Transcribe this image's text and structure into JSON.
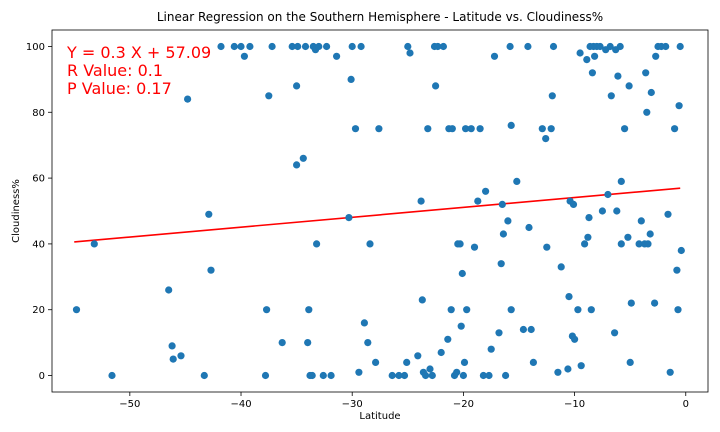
{
  "chart_data": {
    "type": "scatter",
    "title": "Linear Regression on the Southern Hemisphere - Latitude vs. Cloudiness%",
    "xlabel": "Latitude",
    "ylabel": "Cloudiness%",
    "xlim": [
      -57,
      2
    ],
    "ylim": [
      -5,
      105
    ],
    "xticks": [
      -50,
      -40,
      -30,
      -20,
      -10,
      0
    ],
    "yticks": [
      0,
      20,
      40,
      60,
      80,
      100
    ],
    "grid": false,
    "point_color": "#1f77b4",
    "line_color": "#ff0000",
    "regression": {
      "slope": 0.3,
      "intercept": 57.09,
      "x_range": [
        -55,
        -0.5
      ]
    },
    "annotations": [
      "Y = 0.3 X + 57.09",
      "R Value: 0.1",
      "P Value: 0.17"
    ],
    "points": [
      [
        -54.8,
        20
      ],
      [
        -53.2,
        40
      ],
      [
        -51.6,
        0
      ],
      [
        -46.5,
        26
      ],
      [
        -46.2,
        9
      ],
      [
        -46.1,
        5
      ],
      [
        -45.4,
        6
      ],
      [
        -44.8,
        84
      ],
      [
        -43.3,
        0
      ],
      [
        -42.9,
        49
      ],
      [
        -42.7,
        32
      ],
      [
        -41.8,
        100
      ],
      [
        -40.6,
        100
      ],
      [
        -40,
        100
      ],
      [
        -39.7,
        97
      ],
      [
        -39.2,
        100
      ],
      [
        -37.8,
        0
      ],
      [
        -37.7,
        20
      ],
      [
        -37.5,
        85
      ],
      [
        -37.2,
        100
      ],
      [
        -36.3,
        10
      ],
      [
        -35.4,
        100
      ],
      [
        -35,
        88
      ],
      [
        -35,
        64
      ],
      [
        -34.9,
        100
      ],
      [
        -34.4,
        66
      ],
      [
        -34.2,
        100
      ],
      [
        -34,
        10
      ],
      [
        -33.9,
        20
      ],
      [
        -33.8,
        0
      ],
      [
        -33.6,
        0
      ],
      [
        -33.5,
        100
      ],
      [
        -33.3,
        99
      ],
      [
        -33.2,
        40
      ],
      [
        -33,
        100
      ],
      [
        -32.6,
        0
      ],
      [
        -32.3,
        100
      ],
      [
        -31.9,
        0
      ],
      [
        -31.4,
        97
      ],
      [
        -30.3,
        48
      ],
      [
        -30.1,
        90
      ],
      [
        -30,
        100
      ],
      [
        -29.7,
        75
      ],
      [
        -29.4,
        1
      ],
      [
        -29.2,
        100
      ],
      [
        -28.9,
        16
      ],
      [
        -28.6,
        10
      ],
      [
        -28.4,
        40
      ],
      [
        -27.9,
        4
      ],
      [
        -27.6,
        75
      ],
      [
        -26.4,
        0
      ],
      [
        -25.8,
        0
      ],
      [
        -25.3,
        0
      ],
      [
        -25.1,
        4
      ],
      [
        -25,
        100
      ],
      [
        -24.8,
        98
      ],
      [
        -24.1,
        6
      ],
      [
        -23.8,
        53
      ],
      [
        -23.7,
        23
      ],
      [
        -23.6,
        1
      ],
      [
        -23.4,
        0
      ],
      [
        -23.2,
        75
      ],
      [
        -23,
        2
      ],
      [
        -22.8,
        0
      ],
      [
        -22.6,
        100
      ],
      [
        -22.5,
        88
      ],
      [
        -22.3,
        100
      ],
      [
        -22,
        7
      ],
      [
        -21.8,
        100
      ],
      [
        -21.4,
        11
      ],
      [
        -21.3,
        75
      ],
      [
        -21.1,
        20
      ],
      [
        -21,
        75
      ],
      [
        -20.8,
        0
      ],
      [
        -20.6,
        1
      ],
      [
        -20.5,
        40
      ],
      [
        -20.3,
        40
      ],
      [
        -20.2,
        15
      ],
      [
        -20.1,
        31
      ],
      [
        -20,
        0
      ],
      [
        -19.9,
        4
      ],
      [
        -19.8,
        75
      ],
      [
        -19.7,
        20
      ],
      [
        -19.3,
        75
      ],
      [
        -19,
        39
      ],
      [
        -18.7,
        53
      ],
      [
        -18.5,
        75
      ],
      [
        -18.2,
        0
      ],
      [
        -18,
        56
      ],
      [
        -17.7,
        0
      ],
      [
        -17.5,
        8
      ],
      [
        -17.2,
        97
      ],
      [
        -16.8,
        13
      ],
      [
        -16.6,
        34
      ],
      [
        -16.5,
        52
      ],
      [
        -16.4,
        43
      ],
      [
        -16.2,
        0
      ],
      [
        -16,
        47
      ],
      [
        -15.8,
        100
      ],
      [
        -15.7,
        76
      ],
      [
        -15.7,
        20
      ],
      [
        -15.2,
        59
      ],
      [
        -14.6,
        14
      ],
      [
        -14.2,
        100
      ],
      [
        -14.1,
        45
      ],
      [
        -13.9,
        14
      ],
      [
        -13.7,
        4
      ],
      [
        -12.9,
        75
      ],
      [
        -12.6,
        72
      ],
      [
        -12.5,
        39
      ],
      [
        -12.1,
        75
      ],
      [
        -12,
        85
      ],
      [
        -11.9,
        100
      ],
      [
        -11.5,
        1
      ],
      [
        -11.2,
        33
      ],
      [
        -10.6,
        2
      ],
      [
        -10.5,
        24
      ],
      [
        -10.4,
        53
      ],
      [
        -10.2,
        12
      ],
      [
        -10.1,
        52
      ],
      [
        -10,
        11
      ],
      [
        -9.7,
        20
      ],
      [
        -9.5,
        98
      ],
      [
        -9.4,
        3
      ],
      [
        -9.1,
        40
      ],
      [
        -8.9,
        96
      ],
      [
        -8.8,
        42
      ],
      [
        -8.7,
        48
      ],
      [
        -8.6,
        100
      ],
      [
        -8.5,
        20
      ],
      [
        -8.4,
        92
      ],
      [
        -8.3,
        100
      ],
      [
        -8.2,
        97
      ],
      [
        -8,
        100
      ],
      [
        -7.7,
        100
      ],
      [
        -7.5,
        50
      ],
      [
        -7.2,
        99
      ],
      [
        -7,
        55
      ],
      [
        -6.8,
        100
      ],
      [
        -6.7,
        85
      ],
      [
        -6.4,
        13
      ],
      [
        -6.3,
        99
      ],
      [
        -6.2,
        50
      ],
      [
        -6.1,
        91
      ],
      [
        -5.9,
        100
      ],
      [
        -5.8,
        59
      ],
      [
        -5.8,
        40
      ],
      [
        -5.5,
        75
      ],
      [
        -5.2,
        42
      ],
      [
        -5.1,
        88
      ],
      [
        -5,
        4
      ],
      [
        -4.9,
        22
      ],
      [
        -4.2,
        40
      ],
      [
        -4,
        47
      ],
      [
        -3.7,
        40
      ],
      [
        -3.6,
        92
      ],
      [
        -3.5,
        80
      ],
      [
        -3.4,
        40
      ],
      [
        -3.2,
        43
      ],
      [
        -3.1,
        86
      ],
      [
        -2.8,
        22
      ],
      [
        -2.7,
        97
      ],
      [
        -2.5,
        100
      ],
      [
        -2.2,
        100
      ],
      [
        -1.8,
        100
      ],
      [
        -1.6,
        49
      ],
      [
        -1.4,
        1
      ],
      [
        -1,
        75
      ],
      [
        -0.8,
        32
      ],
      [
        -0.7,
        20
      ],
      [
        -0.6,
        82
      ],
      [
        -0.5,
        100
      ],
      [
        -0.4,
        38
      ]
    ]
  }
}
